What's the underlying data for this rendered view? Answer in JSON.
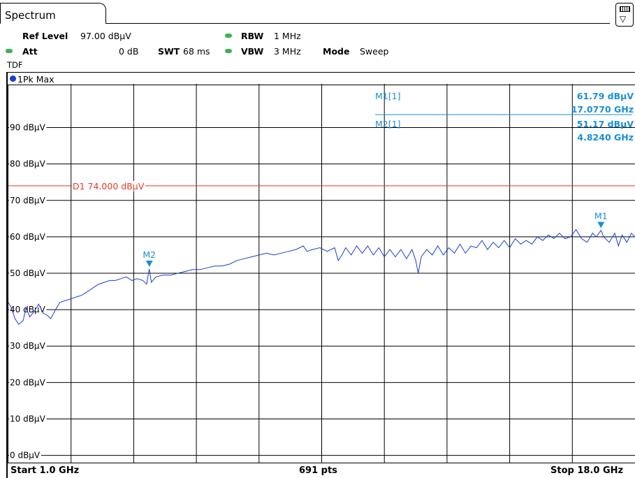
{
  "tab": {
    "label": "Spectrum"
  },
  "settings": {
    "ref_level_label": "Ref Level",
    "ref_level_value": "97.00 dBµV",
    "att_label": "Att",
    "att_value": "0 dB",
    "swt_label": "SWT",
    "swt_value": "68 ms",
    "rbw_label": "RBW",
    "rbw_value": "1 MHz",
    "vbw_label": "VBW",
    "vbw_value": "3 MHz",
    "mode_label": "Mode",
    "mode_value": "Sweep",
    "tdf": "TDF"
  },
  "trace": {
    "label": "1Pk Max",
    "color": "#1a3fd1"
  },
  "markers": [
    {
      "label": "M1[1]",
      "level": "61.79 dBµV",
      "freq": "17.0770 GHz",
      "tag": "M1",
      "x_ghz": 17.077,
      "y_dbuv": 61.79
    },
    {
      "label": "M2[1]",
      "level": "51.17 dBµV",
      "freq": "4.8240 GHz",
      "tag": "M2",
      "x_ghz": 4.824,
      "y_dbuv": 51.17
    }
  ],
  "limit_line": {
    "label": "D1 74.000 dBµV",
    "value": 74.0,
    "color": "#e8392a"
  },
  "footer": {
    "start": "Start 1.0 GHz",
    "points": "691 pts",
    "stop": "Stop 18.0 GHz"
  },
  "chart_data": {
    "type": "line",
    "xlim": [
      1.0,
      18.0
    ],
    "ylim": [
      -2,
      102
    ],
    "x_unit": "GHz",
    "y_unit": "dBµV",
    "y_ticks": [
      0,
      10,
      20,
      30,
      40,
      50,
      60,
      70,
      80,
      90
    ],
    "y_tick_labels": [
      "0 dBµV",
      "10 dBµV",
      "20 dBµV",
      "30 dBµV",
      "40 dBµV",
      "50 dBµV",
      "60 dBµV",
      "70 dBµV",
      "80 dBµV",
      "90 dBµV"
    ],
    "grid": true,
    "series": [
      {
        "name": "1Pk Max",
        "points": [
          [
            1.0,
            42.0
          ],
          [
            1.08,
            40.5
          ],
          [
            1.18,
            37.5
          ],
          [
            1.28,
            36.0
          ],
          [
            1.4,
            37.0
          ],
          [
            1.48,
            40.5
          ],
          [
            1.58,
            38.0
          ],
          [
            1.7,
            39.5
          ],
          [
            1.82,
            41.5
          ],
          [
            1.95,
            39.0
          ],
          [
            2.05,
            38.5
          ],
          [
            2.15,
            37.5
          ],
          [
            2.28,
            40.0
          ],
          [
            2.4,
            42.0
          ],
          [
            2.55,
            42.5
          ],
          [
            2.7,
            43.0
          ],
          [
            2.85,
            43.5
          ],
          [
            3.0,
            44.0
          ],
          [
            3.15,
            45.0
          ],
          [
            3.3,
            46.0
          ],
          [
            3.45,
            47.0
          ],
          [
            3.6,
            47.5
          ],
          [
            3.75,
            48.0
          ],
          [
            3.9,
            48.0
          ],
          [
            4.05,
            48.5
          ],
          [
            4.2,
            49.0
          ],
          [
            4.35,
            48.0
          ],
          [
            4.5,
            48.5
          ],
          [
            4.65,
            48.0
          ],
          [
            4.75,
            47.0
          ],
          [
            4.82,
            51.17
          ],
          [
            4.88,
            47.5
          ],
          [
            5.0,
            49.0
          ],
          [
            5.2,
            49.5
          ],
          [
            5.4,
            49.5
          ],
          [
            5.6,
            50.0
          ],
          [
            5.8,
            50.5
          ],
          [
            6.0,
            51.0
          ],
          [
            6.2,
            51.0
          ],
          [
            6.4,
            51.5
          ],
          [
            6.6,
            52.0
          ],
          [
            6.8,
            52.0
          ],
          [
            7.0,
            52.5
          ],
          [
            7.2,
            53.5
          ],
          [
            7.4,
            54.0
          ],
          [
            7.6,
            54.5
          ],
          [
            7.8,
            55.0
          ],
          [
            8.0,
            55.5
          ],
          [
            8.2,
            55.0
          ],
          [
            8.4,
            55.5
          ],
          [
            8.6,
            56.0
          ],
          [
            8.8,
            56.5
          ],
          [
            9.0,
            57.5
          ],
          [
            9.1,
            56.0
          ],
          [
            9.25,
            56.5
          ],
          [
            9.45,
            57.0
          ],
          [
            9.65,
            56.0
          ],
          [
            9.85,
            57.0
          ],
          [
            9.95,
            53.5
          ],
          [
            10.05,
            55.0
          ],
          [
            10.15,
            57.0
          ],
          [
            10.3,
            55.0
          ],
          [
            10.45,
            57.5
          ],
          [
            10.6,
            55.5
          ],
          [
            10.75,
            57.5
          ],
          [
            10.9,
            55.0
          ],
          [
            11.05,
            57.0
          ],
          [
            11.2,
            54.5
          ],
          [
            11.35,
            56.5
          ],
          [
            11.5,
            54.5
          ],
          [
            11.65,
            56.5
          ],
          [
            11.8,
            54.0
          ],
          [
            11.95,
            56.5
          ],
          [
            12.05,
            53.5
          ],
          [
            12.12,
            50.0
          ],
          [
            12.2,
            54.5
          ],
          [
            12.35,
            56.5
          ],
          [
            12.5,
            55.0
          ],
          [
            12.65,
            57.5
          ],
          [
            12.8,
            55.0
          ],
          [
            12.95,
            57.0
          ],
          [
            13.1,
            55.5
          ],
          [
            13.25,
            58.0
          ],
          [
            13.4,
            55.5
          ],
          [
            13.55,
            57.5
          ],
          [
            13.7,
            57.0
          ],
          [
            13.85,
            59.0
          ],
          [
            14.0,
            56.5
          ],
          [
            14.15,
            58.5
          ],
          [
            14.3,
            57.0
          ],
          [
            14.45,
            59.0
          ],
          [
            14.6,
            57.0
          ],
          [
            14.75,
            59.5
          ],
          [
            14.9,
            58.0
          ],
          [
            15.05,
            59.0
          ],
          [
            15.2,
            58.0
          ],
          [
            15.35,
            60.0
          ],
          [
            15.5,
            59.0
          ],
          [
            15.65,
            60.5
          ],
          [
            15.8,
            59.5
          ],
          [
            15.95,
            61.0
          ],
          [
            16.1,
            59.5
          ],
          [
            16.25,
            60.0
          ],
          [
            16.4,
            62.0
          ],
          [
            16.55,
            59.5
          ],
          [
            16.7,
            58.5
          ],
          [
            16.85,
            61.0
          ],
          [
            16.95,
            60.0
          ],
          [
            17.077,
            61.79
          ],
          [
            17.15,
            60.0
          ],
          [
            17.3,
            58.5
          ],
          [
            17.45,
            61.0
          ],
          [
            17.55,
            57.5
          ],
          [
            17.65,
            60.5
          ],
          [
            17.78,
            58.5
          ],
          [
            17.9,
            61.0
          ],
          [
            18.0,
            60.0
          ]
        ]
      }
    ]
  }
}
